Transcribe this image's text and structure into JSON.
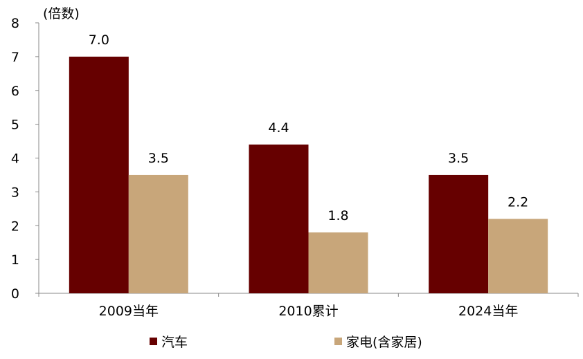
{
  "chart_data": {
    "type": "bar",
    "unit_label": "(倍数)",
    "categories": [
      "2009当年",
      "2010累计",
      "2024当年"
    ],
    "series": [
      {
        "name": "汽车",
        "values": [
          7.0,
          4.4,
          3.5
        ],
        "value_labels": [
          "7.0",
          "4.4",
          "3.5"
        ],
        "color": "#660000"
      },
      {
        "name": "家电(含家居)",
        "values": [
          3.5,
          1.8,
          2.2
        ],
        "value_labels": [
          "3.5",
          "1.8",
          "2.2"
        ],
        "color": "#C8A67A"
      }
    ],
    "ylim": [
      0,
      8
    ],
    "yticks": [
      "0",
      "1",
      "2",
      "3",
      "4",
      "5",
      "6",
      "7",
      "8"
    ],
    "grid": false,
    "legend_position": "bottom"
  }
}
